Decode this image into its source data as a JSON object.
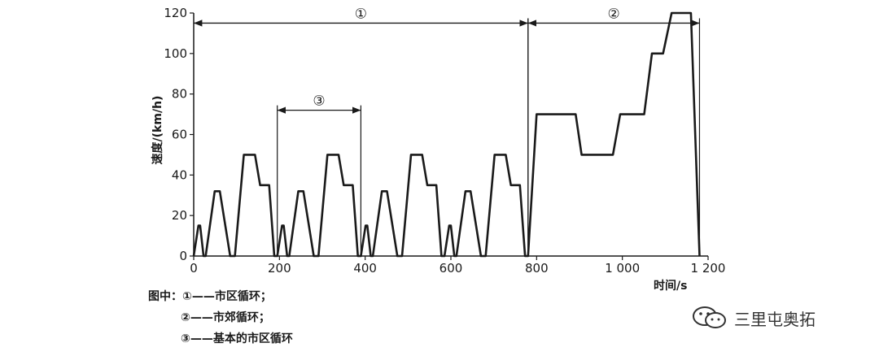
{
  "chart_data": {
    "type": "line",
    "title": "",
    "xlabel": "时间/s",
    "ylabel": "速度/(km/h)",
    "xlim": [
      0,
      1200
    ],
    "ylim": [
      0,
      120
    ],
    "x_ticks": [
      0,
      200,
      400,
      600,
      800,
      1000,
      1200
    ],
    "x_tick_labels": [
      "0",
      "200",
      "400",
      "600",
      "800",
      "1 000",
      "1 200"
    ],
    "y_ticks": [
      0,
      20,
      40,
      60,
      80,
      100,
      120
    ],
    "y_tick_labels": [
      "0",
      "20",
      "40",
      "60",
      "80",
      "100",
      "120"
    ],
    "series": [
      {
        "x": [
          0,
          11,
          15,
          23,
          28,
          49,
          61,
          85,
          96,
          117,
          143,
          155,
          163,
          176,
          188,
          195,
          206,
          210,
          218,
          223,
          244,
          256,
          280,
          291,
          312,
          338,
          350,
          358,
          371,
          383,
          390,
          401,
          405,
          413,
          418,
          439,
          451,
          475,
          486,
          507,
          533,
          545,
          553,
          566,
          578,
          585,
          596,
          600,
          608,
          613,
          634,
          646,
          670,
          681,
          702,
          728,
          740,
          748,
          761,
          773,
          780,
          800,
          822,
          891,
          905,
          978,
          995,
          1034,
          1051,
          1069,
          1095,
          1115,
          1150,
          1160,
          1180
        ],
        "y": [
          0,
          15,
          15,
          0,
          0,
          32,
          32,
          0,
          0,
          50,
          50,
          35,
          35,
          35,
          0,
          0,
          15,
          15,
          0,
          0,
          32,
          32,
          0,
          0,
          50,
          50,
          35,
          35,
          35,
          0,
          0,
          15,
          15,
          0,
          0,
          32,
          32,
          0,
          0,
          50,
          50,
          35,
          35,
          35,
          0,
          0,
          15,
          15,
          0,
          0,
          32,
          32,
          0,
          0,
          50,
          50,
          35,
          35,
          35,
          0,
          0,
          70,
          70,
          70,
          50,
          50,
          70,
          70,
          70,
          100,
          100,
          120,
          120,
          120,
          0
        ]
      }
    ],
    "annotations": [
      {
        "label": "①",
        "x_start": 0,
        "x_end": 780,
        "y": 115
      },
      {
        "label": "②",
        "x_start": 780,
        "x_end": 1180,
        "y": 115
      },
      {
        "label": "③",
        "x_start": 195,
        "x_end": 390,
        "y": 72
      }
    ]
  },
  "notes": {
    "prefix": "图中：",
    "items": [
      "①——市区循环；",
      "②——市郊循环；",
      "③——基本的市区循环"
    ]
  },
  "watermark": {
    "text": "三里屯奥拓",
    "icon": "wechat-icon"
  }
}
